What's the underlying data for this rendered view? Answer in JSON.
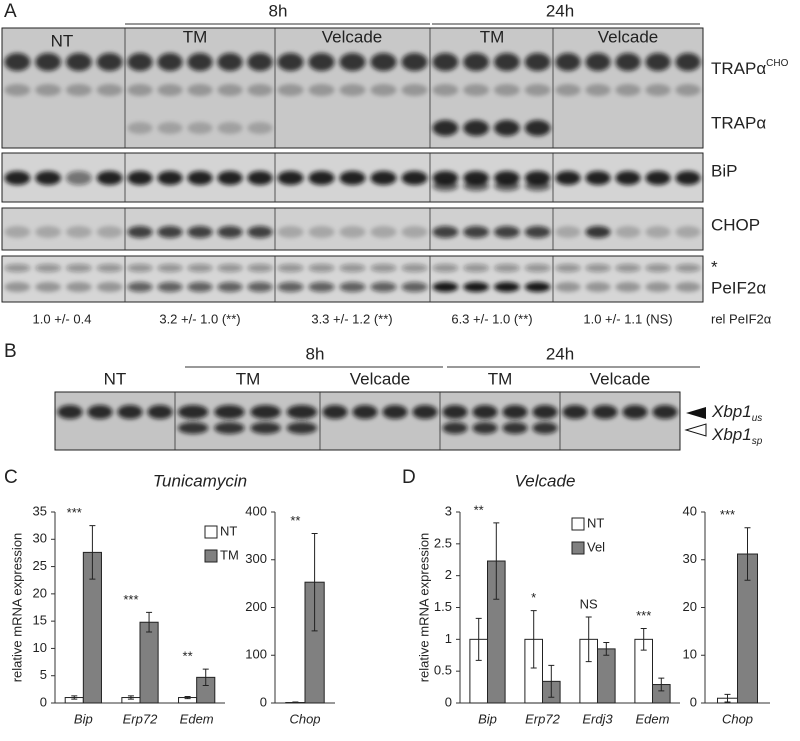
{
  "figure": {
    "panel_a": {
      "letter": "A",
      "time_8h": "8h",
      "time_24h": "24h",
      "groups": [
        "NT",
        "TM",
        "Velcade",
        "TM",
        "Velcade"
      ],
      "rows": {
        "trap_cho": "TRAPα",
        "trap_cho_sup": "CHO",
        "trap": "TRAPα",
        "bip": "BiP",
        "chop": "CHOP",
        "asterisk": "*",
        "peif2a": "PeIF2α"
      },
      "quantification": [
        "1.0 +/- 0.4",
        "3.2 +/- 1.0 (**)",
        "3.3 +/- 1.2 (**)",
        "6.3 +/- 1.0 (**)",
        "1.0 +/- 1.1 (NS)"
      ],
      "quantification_label": "rel PeIF2α"
    },
    "panel_b": {
      "letter": "B",
      "time_8h": "8h",
      "time_24h": "24h",
      "groups": [
        "NT",
        "TM",
        "Velcade",
        "TM",
        "Velcade"
      ],
      "xbp1_us": "Xbp1",
      "xbp1_us_sub": "us",
      "xbp1_sp": "Xbp1",
      "xbp1_sp_sub": "sp"
    },
    "panel_c": {
      "letter": "C"
    },
    "panel_d": {
      "letter": "D"
    }
  },
  "chart_data": [
    {
      "type": "bar",
      "title": "Tunicamycin",
      "ylabel": "relative mRNA expression",
      "categories": [
        "Bip",
        "Erp72",
        "Edem"
      ],
      "series": [
        {
          "name": "NT",
          "color": "#ffffff",
          "values": [
            1,
            1,
            1
          ],
          "errors": [
            0.3,
            0.3,
            0.2
          ]
        },
        {
          "name": "TM",
          "color": "#808080",
          "values": [
            27.6,
            14.8,
            4.7
          ],
          "errors": [
            4.9,
            1.8,
            1.5
          ]
        }
      ],
      "annotations": [
        "***",
        "***",
        "**"
      ],
      "ylim": [
        0,
        35
      ],
      "yticks": [
        0,
        5,
        10,
        15,
        20,
        25,
        30,
        35
      ],
      "legend": "upper right"
    },
    {
      "type": "bar",
      "categories": [
        "Chop"
      ],
      "series": [
        {
          "color": "#ffffff",
          "values": [
            1
          ],
          "errors": [
            1
          ]
        },
        {
          "color": "#808080",
          "values": [
            253
          ],
          "errors": [
            102
          ]
        }
      ],
      "annotations": [
        "**"
      ],
      "ylim": [
        0,
        400
      ],
      "yticks": [
        0,
        100,
        200,
        300,
        400
      ]
    },
    {
      "type": "bar",
      "title": "Velcade",
      "ylabel": "relative mRNA expression",
      "categories": [
        "Bip",
        "Erp72",
        "Erdj3",
        "Edem"
      ],
      "series": [
        {
          "name": "NT",
          "color": "#ffffff",
          "values": [
            1,
            1,
            1,
            1
          ],
          "errors": [
            0.33,
            0.45,
            0.35,
            0.17
          ]
        },
        {
          "name": "Vel",
          "color": "#808080",
          "values": [
            2.23,
            0.34,
            0.85,
            0.29
          ],
          "errors": [
            0.6,
            0.25,
            0.1,
            0.1
          ]
        }
      ],
      "annotations": [
        "**",
        "*",
        "NS",
        "***"
      ],
      "ylim": [
        0,
        3
      ],
      "yticks": [
        0,
        0.5,
        1,
        1.5,
        2,
        2.5,
        3
      ],
      "legend": "upper right"
    },
    {
      "type": "bar",
      "categories": [
        "Chop"
      ],
      "series": [
        {
          "color": "#ffffff",
          "values": [
            1
          ],
          "errors": [
            0.8
          ]
        },
        {
          "color": "#808080",
          "values": [
            31.2
          ],
          "errors": [
            5.5
          ]
        }
      ],
      "annotations": [
        "***"
      ],
      "ylim": [
        0,
        40
      ],
      "yticks": [
        0,
        10,
        20,
        30,
        40
      ]
    }
  ]
}
